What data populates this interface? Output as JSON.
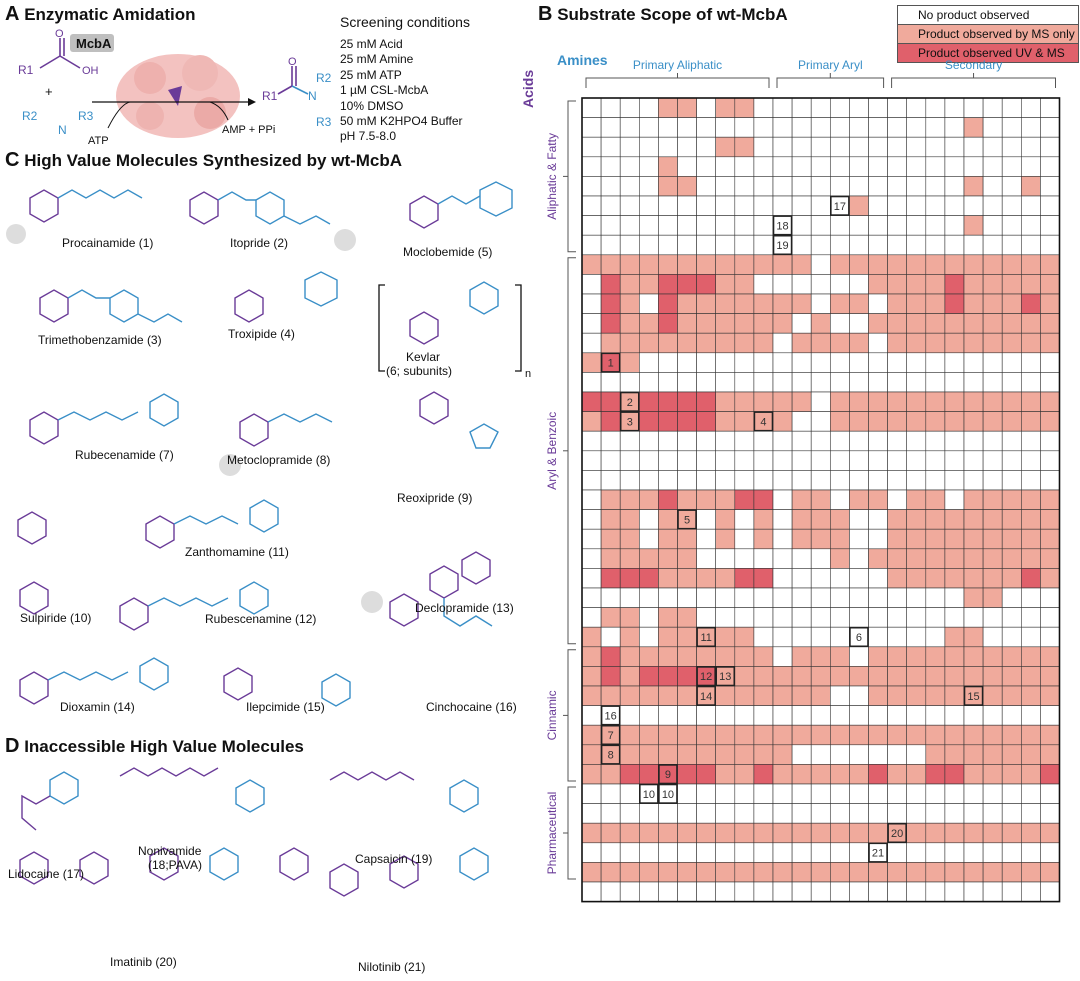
{
  "panel_a": {
    "letter": "A",
    "title": "Enzymatic Amidation",
    "enzyme_label": "McbA",
    "atp": "ATP",
    "byproducts": "AMP + PPi",
    "plus": "+",
    "r1": "R1",
    "r2": "R2",
    "r3": "R3",
    "conditions_title": "Screening conditions",
    "conditions": [
      "25 mM Acid",
      "25 mM Amine",
      "25 mM ATP",
      "1 µM CSL-McbA",
      "10% DMSO",
      "50 mM K2HPO4 Buffer",
      "pH 7.5-8.0"
    ]
  },
  "panel_b": {
    "letter": "B",
    "title": "Substrate Scope of wt-McbA",
    "amines_label": "Amines",
    "acids_label": "Acids",
    "amine_groups": [
      "Primary Aliphatic",
      "Primary Aryl",
      "Secondary"
    ],
    "acid_groups": [
      "Aliphatic & Fatty",
      "Aryl & Benzoic",
      "Cinnamic",
      "Pharmaceutical"
    ],
    "legend": {
      "none": "No product observed",
      "ms": "Product observed by MS only",
      "uvms": "Product observed UV & MS"
    },
    "colors": {
      "none": "#ffffff",
      "ms": "#f0aa9c",
      "uvms": "#e0606b",
      "label_text": "#333333"
    }
  },
  "panel_c": {
    "letter": "C",
    "title": "High Value Molecules Synthesized by wt-McbA",
    "compounds": [
      {
        "name": "Procainamide (1)"
      },
      {
        "name": "Itopride (2)"
      },
      {
        "name": "Moclobemide (5)"
      },
      {
        "name": "Trimethobenzamide (3)"
      },
      {
        "name": "Troxipide (4)"
      },
      {
        "name": "Kevlar"
      },
      {
        "name": "(6; subunits)"
      },
      {
        "name": "Rubecenamide (7)"
      },
      {
        "name": "Metoclopramide (8)"
      },
      {
        "name": "Reoxipride (9)"
      },
      {
        "name": "Zanthomamine (11)"
      },
      {
        "name": "Sulpiride (10)"
      },
      {
        "name": "Declopramide (13)"
      },
      {
        "name": "Rubescenamine (12)"
      },
      {
        "name": "Dioxamin (14)"
      },
      {
        "name": "Ilepcimide (15)"
      },
      {
        "name": "Cinchocaine (16)"
      }
    ]
  },
  "panel_d": {
    "letter": "D",
    "title": "Inaccessible High Value Molecules",
    "compounds": [
      {
        "name": "Lidocaine (17)"
      },
      {
        "name": "Nonivamide"
      },
      {
        "name": "(18;PAVA)"
      },
      {
        "name": "Capsaicin (19)"
      },
      {
        "name": "Imatinib (20)"
      },
      {
        "name": "Nilotinib (21)"
      }
    ]
  },
  "chart_data": {
    "type": "heatmap",
    "title": "Substrate Scope of wt-McbA",
    "xlabel": "Amines",
    "ylabel": "Acids",
    "legend": [
      "No product observed",
      "Product observed by MS only",
      "Product observed UV & MS"
    ],
    "value_codes": {
      "0": "No product observed",
      "1": "Product observed by MS only",
      "2": "Product observed UV & MS"
    },
    "n_cols": 25,
    "n_rows": 41,
    "col_groups": [
      {
        "label": "Primary Aliphatic",
        "start": 0,
        "end": 9
      },
      {
        "label": "Primary Aryl",
        "start": 10,
        "end": 15
      },
      {
        "label": "Secondary",
        "start": 16,
        "end": 24
      }
    ],
    "row_groups": [
      {
        "label": "Aliphatic & Fatty",
        "start": 0,
        "end": 7
      },
      {
        "label": "Aryl & Benzoic",
        "start": 8,
        "end": 27
      },
      {
        "label": "Cinnamic",
        "start": 28,
        "end": 34
      },
      {
        "label": "Pharmaceutical",
        "start": 35,
        "end": 39
      }
    ],
    "rows": [
      "0000110110000000000000000",
      "0000000000000000000010000",
      "0000000110000000000000000",
      "0000100000000000000000000",
      "0000110000000000000010010",
      "0000000000000010000000000",
      "0000000000000000000010000",
      "0000000000000000000000000",
      "1111111111110111111111111",
      "0211222110000001111211111",
      "0210211111110110111211121",
      "0211211111101001111111111",
      "0111111111011110111111111",
      "1210000000000000000000000",
      "0000000000000000000000000",
      "2212222111110111111111111",
      "1212222111100111111111111",
      "0000000000000000000000000",
      "0000000000000000000000000",
      "0000000000000000000000000",
      "0111211122011011011011111",
      "0110110101011100111111111",
      "0110110101011100111111111",
      "0111110000000101111111111",
      "0222111122000000111111121",
      "0000000000000000000011000",
      "0110110000000000000000000",
      "1010111110000000000110000",
      "1211111111011101111111111",
      "1212222111111111111111111",
      "1111111111111001111111111",
      "0000000000000000000000000",
      "1111111111111111111111111",
      "1111111111100000001111111",
      "1122222112111112112211112",
      "0000000000000000000000000",
      "0000000000000000000000000",
      "1111111111111111111111111",
      "0000000000000000000000000",
      "1111111111111111111111111",
      "0000000000000000000000000"
    ],
    "labeled_cells": [
      {
        "label": "17",
        "row": 5,
        "col": 13
      },
      {
        "label": "18",
        "row": 6,
        "col": 10
      },
      {
        "label": "19",
        "row": 7,
        "col": 10
      },
      {
        "label": "1",
        "row": 13,
        "col": 1
      },
      {
        "label": "2",
        "row": 15,
        "col": 2
      },
      {
        "label": "3",
        "row": 16,
        "col": 2
      },
      {
        "label": "4",
        "row": 16,
        "col": 9
      },
      {
        "label": "5",
        "row": 21,
        "col": 5
      },
      {
        "label": "6",
        "row": 27,
        "col": 14
      },
      {
        "label": "7",
        "row": 32,
        "col": 1
      },
      {
        "label": "8",
        "row": 33,
        "col": 1
      },
      {
        "label": "9",
        "row": 34,
        "col": 4
      },
      {
        "label": "10",
        "row": 35,
        "col": 3
      },
      {
        "label": "10",
        "row": 35,
        "col": 4
      },
      {
        "label": "11",
        "row": 27,
        "col": 6
      },
      {
        "label": "12",
        "row": 29,
        "col": 6
      },
      {
        "label": "13",
        "row": 29,
        "col": 7
      },
      {
        "label": "14",
        "row": 30,
        "col": 6
      },
      {
        "label": "15",
        "row": 30,
        "col": 20
      },
      {
        "label": "16",
        "row": 31,
        "col": 1
      },
      {
        "label": "20",
        "row": 37,
        "col": 16
      },
      {
        "label": "21",
        "row": 38,
        "col": 15
      }
    ]
  }
}
